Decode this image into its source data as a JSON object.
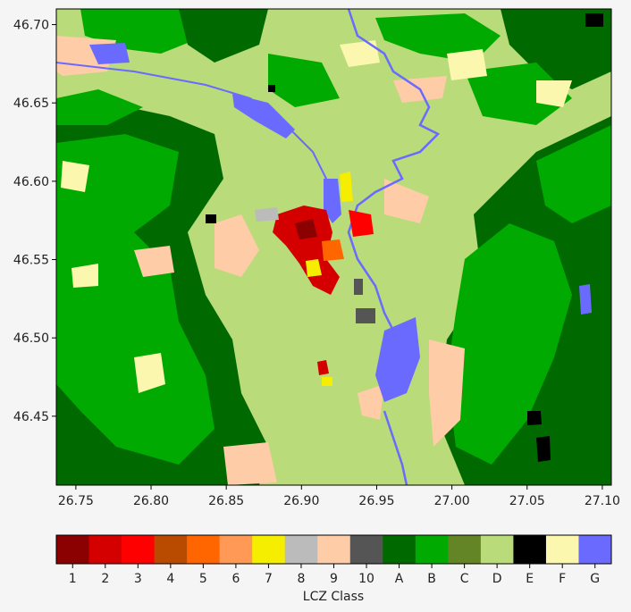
{
  "map": {
    "x_ticks": [
      "26.75",
      "26.80",
      "26.85",
      "26.90",
      "26.95",
      "27.00",
      "27.05",
      "27.10"
    ],
    "y_ticks": [
      "46.70",
      "46.65",
      "46.60",
      "46.55",
      "46.50",
      "46.45"
    ],
    "x_range": [
      26.737,
      27.106
    ],
    "y_range": [
      46.406,
      46.71
    ]
  },
  "colorbar": {
    "title": "LCZ Class",
    "classes": [
      {
        "label": "1",
        "color": "#8b0000"
      },
      {
        "label": "2",
        "color": "#d40000"
      },
      {
        "label": "3",
        "color": "#ff0000"
      },
      {
        "label": "4",
        "color": "#b84b00"
      },
      {
        "label": "5",
        "color": "#ff6600"
      },
      {
        "label": "6",
        "color": "#ff9955"
      },
      {
        "label": "7",
        "color": "#f5ee00"
      },
      {
        "label": "8",
        "color": "#bbbbbb"
      },
      {
        "label": "9",
        "color": "#ffcca8"
      },
      {
        "label": "10",
        "color": "#555555"
      },
      {
        "label": "A",
        "color": "#006a00"
      },
      {
        "label": "B",
        "color": "#00aa00"
      },
      {
        "label": "C",
        "color": "#648525"
      },
      {
        "label": "D",
        "color": "#b9db79"
      },
      {
        "label": "E",
        "color": "#000000"
      },
      {
        "label": "F",
        "color": "#fbf7ae"
      },
      {
        "label": "G",
        "color": "#6a6aff"
      }
    ]
  }
}
